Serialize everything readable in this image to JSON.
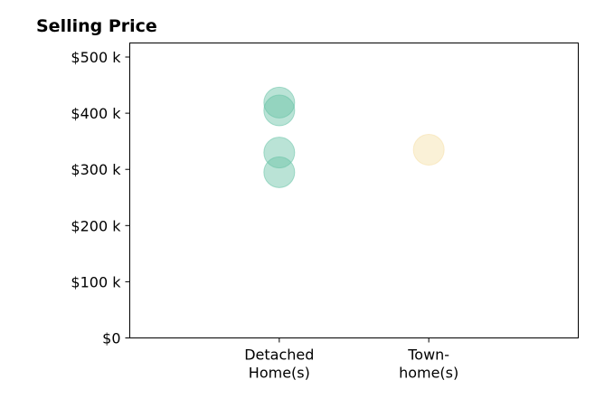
{
  "chart_data": {
    "type": "scatter",
    "title": "Selling Price",
    "xlabel": "",
    "ylabel": "",
    "categories": [
      {
        "lines": [
          "Detached",
          "Home(s)"
        ]
      },
      {
        "lines": [
          "Town-",
          "home(s)"
        ]
      }
    ],
    "x_range": [
      -1,
      2
    ],
    "ylim": [
      0,
      525000
    ],
    "y_ticks": [
      {
        "value": 0,
        "label": "$0"
      },
      {
        "value": 100000,
        "label": "$100 k"
      },
      {
        "value": 200000,
        "label": "$200 k"
      },
      {
        "value": 300000,
        "label": "$300 k"
      },
      {
        "value": 400000,
        "label": "$400 k"
      },
      {
        "value": 500000,
        "label": "$500 k"
      }
    ],
    "grid": false,
    "series": [
      {
        "category": 0,
        "color": "#66c2a5",
        "values": [
          419000,
          405000,
          330000,
          295000
        ]
      },
      {
        "category": 1,
        "color": "#f5dfa6",
        "values": [
          335000
        ]
      }
    ]
  }
}
